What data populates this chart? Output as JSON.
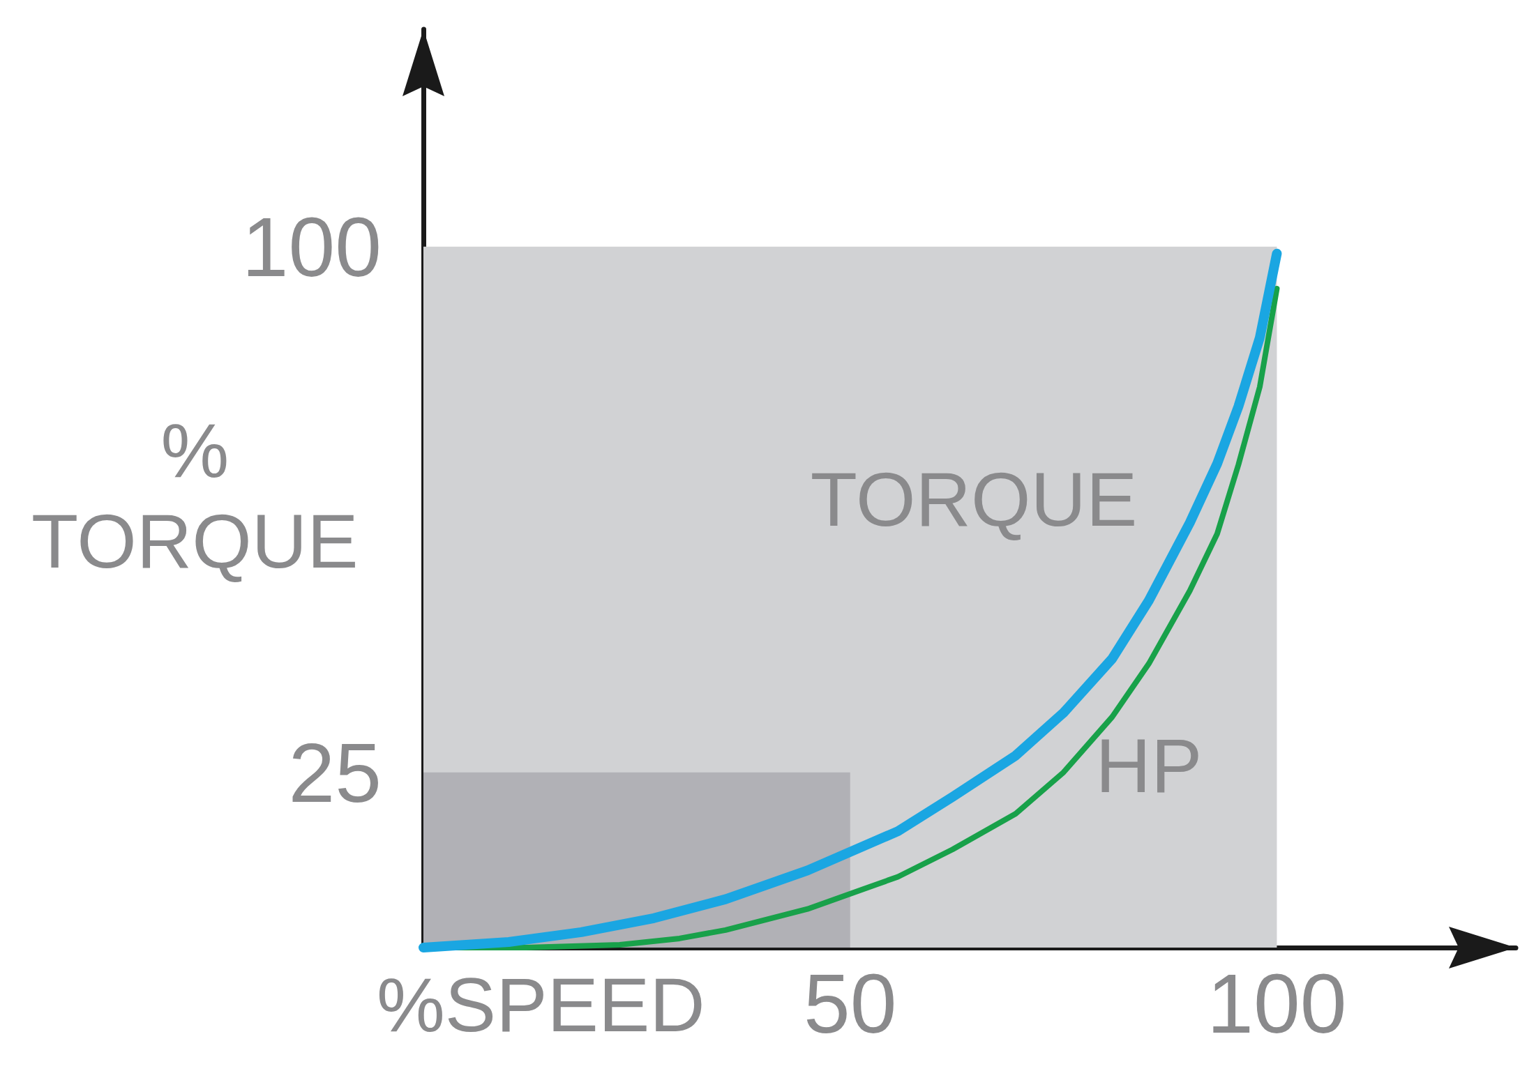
{
  "chart_data": {
    "type": "line",
    "xlabel": "%SPEED",
    "ylabel": "%\nTORQUE",
    "xlim": [
      0,
      128
    ],
    "ylim": [
      0,
      131
    ],
    "xticks": [
      50,
      100
    ],
    "yticks": [
      25,
      100
    ],
    "grid": false,
    "marker": "none",
    "line_style": "solid",
    "series": [
      {
        "type": "area",
        "color": "#d1d2d4",
        "x": [
          0,
          100
        ],
        "values": [
          100,
          100
        ]
      },
      {
        "type": "area",
        "color": "#b1b1b6",
        "x": [
          0,
          50
        ],
        "values": [
          25,
          25
        ]
      },
      {
        "name": "TORQUE",
        "color": "#1aa6e2",
        "x": [
          0,
          10,
          18.5,
          27,
          35.4,
          45,
          55.6,
          62,
          69.4,
          75,
          80.7,
          85,
          89.8,
          93,
          95.5,
          98,
          100
        ],
        "values": [
          0,
          0.8,
          2.2,
          4.2,
          6.9,
          11,
          16.6,
          21.5,
          27.4,
          33.5,
          41.2,
          49.5,
          60.6,
          69,
          77.2,
          87,
          99
        ]
      },
      {
        "name": "HP",
        "color": "#18a14a",
        "x": [
          0,
          12,
          23,
          30,
          35.4,
          45,
          55.6,
          62,
          69.4,
          75,
          80.7,
          85,
          89.8,
          93,
          95.5,
          98,
          100
        ],
        "values": [
          0,
          0,
          0.4,
          1.3,
          2.5,
          5.5,
          10.1,
          14,
          19.1,
          25,
          32.9,
          40.5,
          50.9,
          59,
          68.9,
          80,
          94
        ]
      }
    ]
  }
}
